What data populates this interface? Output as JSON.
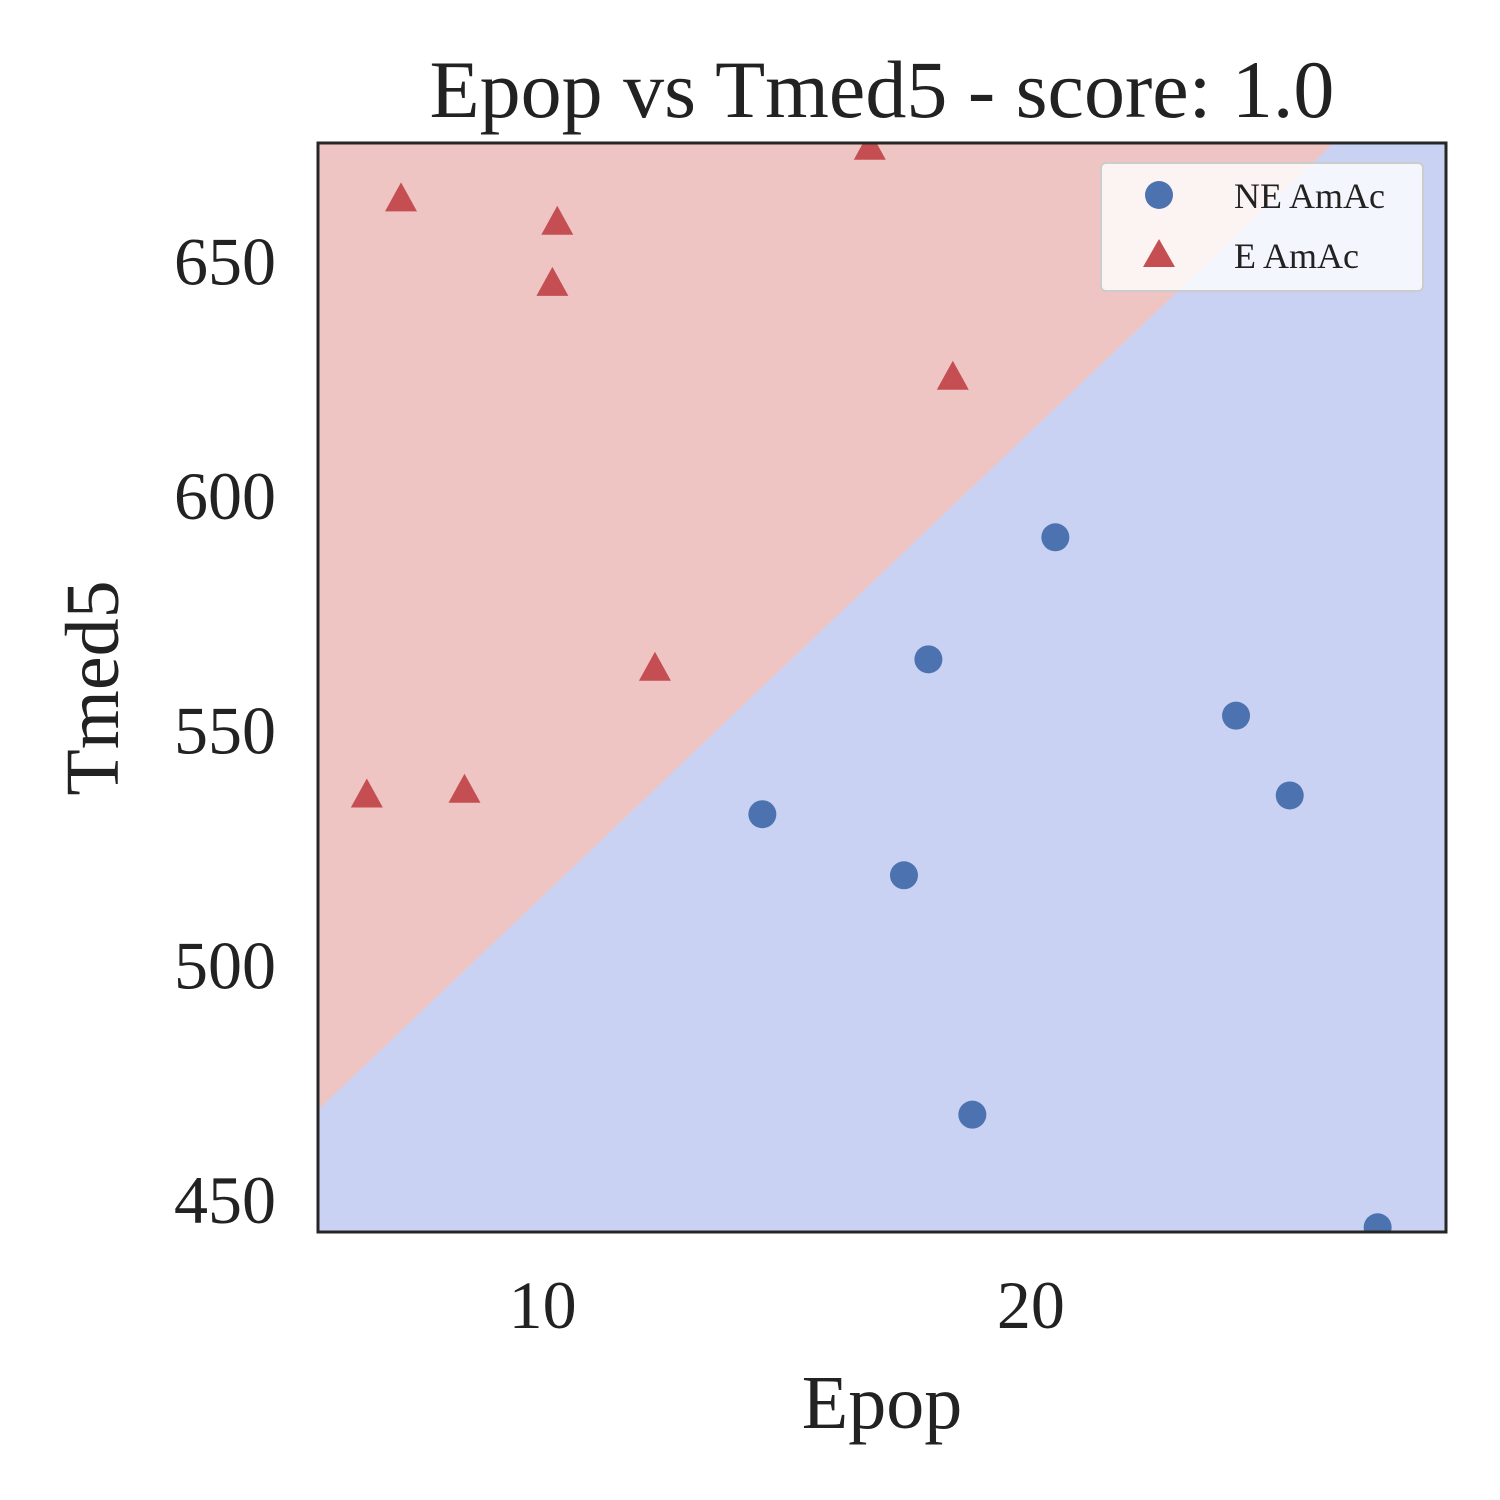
{
  "chart_data": {
    "type": "scatter",
    "title": "Epop vs Tmed5 - score: 1.0",
    "xlabel": "Epop",
    "ylabel": "Tmed5",
    "xlim": [
      5.4,
      28.5
    ],
    "ylim": [
      443,
      675
    ],
    "xticks": [
      10,
      20
    ],
    "yticks": [
      450,
      500,
      550,
      600,
      650
    ],
    "grid": false,
    "legend_position": "top-right",
    "decision_boundary": {
      "points": [
        [
          5.4,
          469
        ],
        [
          26.2,
          675
        ]
      ],
      "above_class": "E AmAc",
      "below_class": "NE AmAc"
    },
    "series": [
      {
        "name": "NE AmAc",
        "marker": "circle",
        "color": "#4c72b0",
        "region_color": "#c9d2f2",
        "points": [
          [
            14.5,
            532
          ],
          [
            17.4,
            519
          ],
          [
            17.9,
            565
          ],
          [
            18.8,
            468
          ],
          [
            20.5,
            591
          ],
          [
            24.2,
            553
          ],
          [
            25.3,
            536
          ],
          [
            27.1,
            444
          ]
        ]
      },
      {
        "name": "E AmAc",
        "marker": "triangle",
        "color": "#c44e52",
        "region_color": "#efc5c4",
        "points": [
          [
            6.4,
            536
          ],
          [
            7.1,
            663
          ],
          [
            8.4,
            537
          ],
          [
            10.2,
            645
          ],
          [
            10.3,
            658
          ],
          [
            12.3,
            563
          ],
          [
            16.7,
            674
          ],
          [
            18.4,
            625
          ]
        ]
      }
    ]
  }
}
